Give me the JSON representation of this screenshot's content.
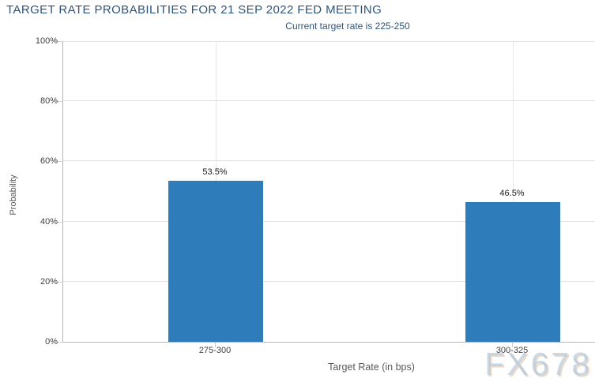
{
  "header": {
    "title": "TARGET RATE PROBABILITIES FOR 21 SEP 2022 FED MEETING",
    "subtitle": "Current target rate is 225-250"
  },
  "watermark": "FX678",
  "colors": {
    "bar": "#2e7dba",
    "title_text": "#2e5379",
    "grid": "#e2e2e2",
    "axis_line": "#b3b3b3",
    "tick_label": "#404040",
    "axis_title": "#595959"
  },
  "chart_data": {
    "type": "bar",
    "title": "TARGET RATE PROBABILITIES FOR 21 SEP 2022 FED MEETING",
    "subtitle": "Current target rate is 225-250",
    "categories": [
      "275-300",
      "300-325"
    ],
    "values": [
      53.5,
      46.5
    ],
    "data_labels": [
      "53.5%",
      "46.5%"
    ],
    "xlabel": "Target Rate (in bps)",
    "ylabel": "Probability",
    "ylim": [
      0,
      100
    ],
    "ytick_step": 20,
    "ytick_labels": [
      "0%",
      "20%",
      "40%",
      "60%",
      "80%",
      "100%"
    ],
    "grid": true,
    "legend": false
  }
}
